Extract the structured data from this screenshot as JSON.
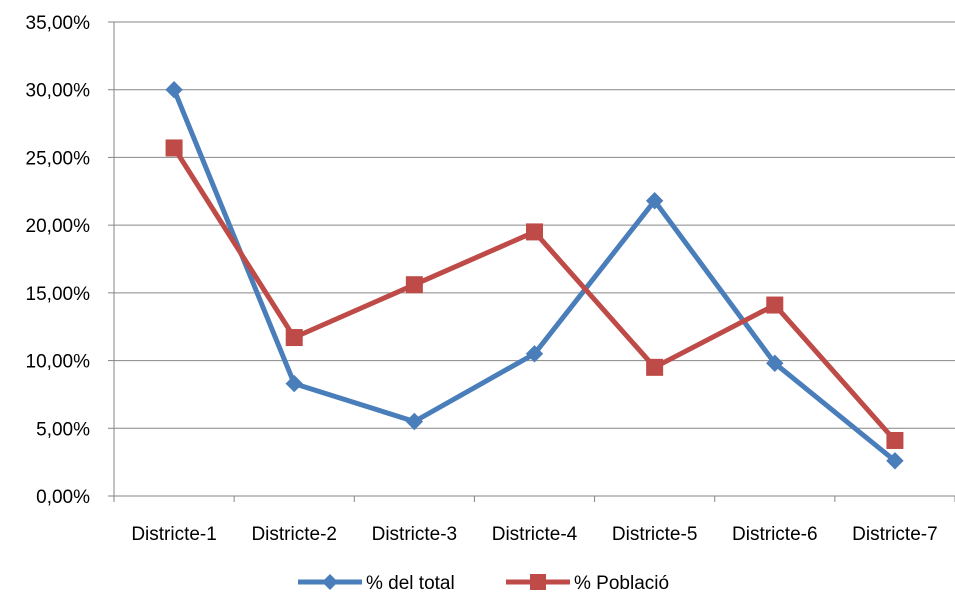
{
  "chart_data": {
    "type": "line",
    "categories": [
      "Districte-1",
      "Districte-2",
      "Districte-3",
      "Districte-4",
      "Districte-5",
      "Districte-6",
      "Districte-7"
    ],
    "series": [
      {
        "name": "% del total",
        "values": [
          0.3,
          0.083,
          0.055,
          0.105,
          0.218,
          0.098,
          0.026
        ],
        "color": "#4a7ebb",
        "marker": "diamond"
      },
      {
        "name": "% Població",
        "values": [
          0.257,
          0.117,
          0.156,
          0.195,
          0.095,
          0.141,
          0.041
        ],
        "color": "#be4b48",
        "marker": "square"
      }
    ],
    "ylim": [
      0,
      0.35
    ],
    "yticks": [
      "0,00%",
      "5,00%",
      "10,00%",
      "15,00%",
      "20,00%",
      "25,00%",
      "30,00%",
      "35,00%"
    ],
    "grid": true,
    "legend_position": "bottom"
  }
}
